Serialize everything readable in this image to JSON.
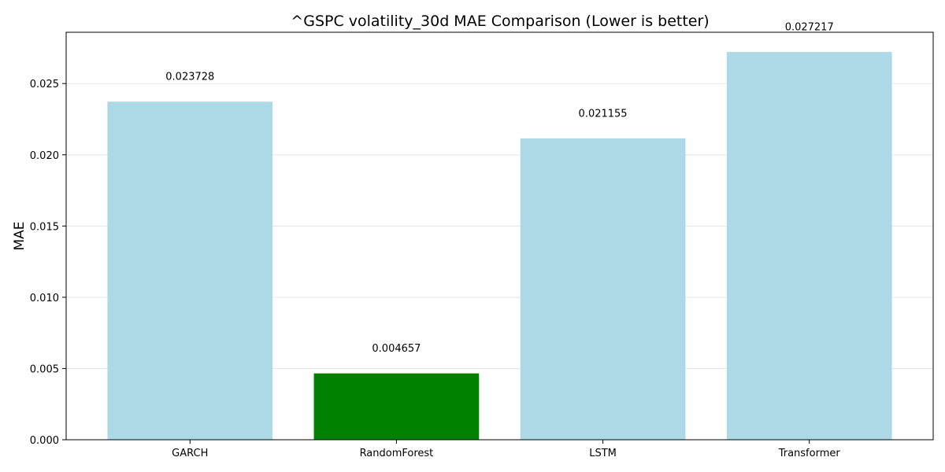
{
  "chart_data": {
    "type": "bar",
    "title": "^GSPC volatility_30d MAE Comparison (Lower is better)",
    "xlabel": "",
    "ylabel": "MAE",
    "categories": [
      "GARCH",
      "RandomForest",
      "LSTM",
      "Transformer"
    ],
    "values": [
      0.023728,
      0.004657,
      0.021155,
      0.027217
    ],
    "value_labels": [
      "0.023728",
      "0.004657",
      "0.021155",
      "0.027217"
    ],
    "bar_colors": [
      "#add8e6",
      "#008000",
      "#add8e6",
      "#add8e6"
    ],
    "ylim": [
      0,
      0.0286
    ],
    "yticks": [
      0.0,
      0.005,
      0.01,
      0.015,
      0.02,
      0.025
    ],
    "ytick_labels": [
      "0.000",
      "0.005",
      "0.010",
      "0.015",
      "0.020",
      "0.025"
    ],
    "grid": "y-axis",
    "grid_color": "#e5e5e5",
    "legend": "none"
  }
}
